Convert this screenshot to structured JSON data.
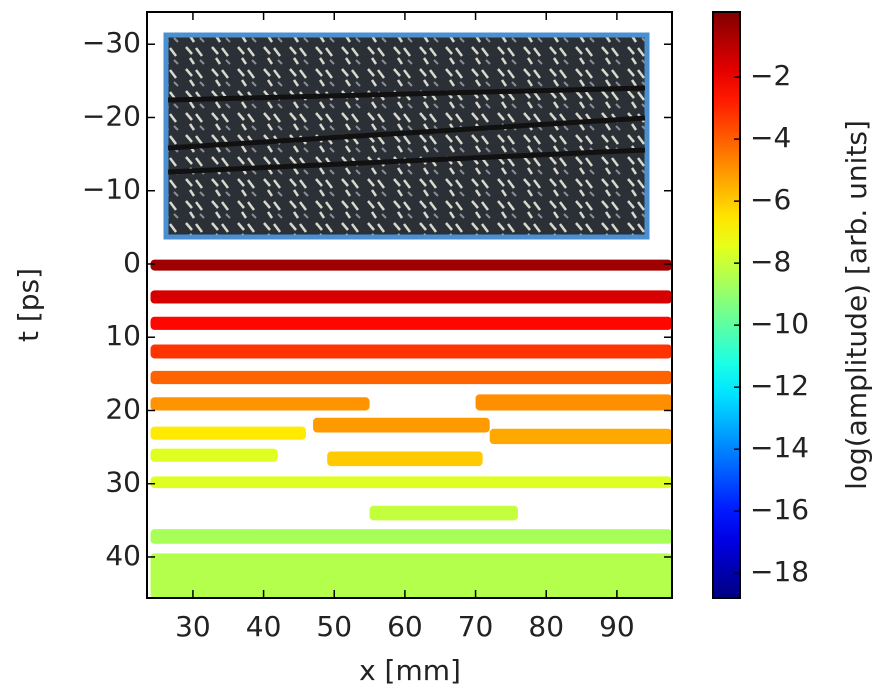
{
  "chart_data": {
    "type": "heatmap",
    "xlabel": "x [mm]",
    "ylabel": "t [ps]",
    "colorbar_label": "log(amplitude) [arb. units]",
    "xlim": [
      23.5,
      97.8
    ],
    "xticks": [
      30,
      40,
      50,
      60,
      70,
      80,
      90
    ],
    "ylim": [
      -34.4,
      45.6
    ],
    "yticks": [
      {
        "value": -30,
        "label": "−30"
      },
      {
        "value": -20,
        "label": "−20"
      },
      {
        "value": -10,
        "label": "−10"
      },
      0,
      10,
      20,
      30,
      40
    ],
    "clim": [
      -18.8,
      0.1
    ],
    "cticks": [
      {
        "value": -2,
        "label": "−2"
      },
      {
        "value": -4,
        "label": "−4"
      },
      {
        "value": -6,
        "label": "−6"
      },
      {
        "value": -8,
        "label": "−8"
      },
      {
        "value": -10,
        "label": "−10"
      },
      {
        "value": -12,
        "label": "−12"
      },
      {
        "value": -14,
        "label": "−14"
      },
      {
        "value": -16,
        "label": "−16"
      },
      {
        "value": -18,
        "label": "−18"
      }
    ],
    "colormap": "jet",
    "segments": [
      {
        "x": [
          24,
          97.8
        ],
        "t": [
          -0.6,
          0.9
        ],
        "value": -0.5
      },
      {
        "x": [
          24,
          97.8
        ],
        "t": [
          3.6,
          5.4
        ],
        "value": -1.5
      },
      {
        "x": [
          24,
          97.8
        ],
        "t": [
          7.2,
          9.0
        ],
        "value": -2.4
      },
      {
        "x": [
          24,
          97.8
        ],
        "t": [
          11.0,
          12.9
        ],
        "value": -3.2
      },
      {
        "x": [
          24,
          97.8
        ],
        "t": [
          14.6,
          16.4
        ],
        "value": -4.1
      },
      {
        "x": [
          24,
          55
        ],
        "t": [
          18.2,
          20.0
        ],
        "value": -5.0
      },
      {
        "x": [
          70,
          97.8
        ],
        "t": [
          17.8,
          20.0
        ],
        "value": -4.9
      },
      {
        "x": [
          47,
          72
        ],
        "t": [
          21.0,
          23.0
        ],
        "value": -5.1
      },
      {
        "x": [
          24,
          46
        ],
        "t": [
          22.2,
          24.0
        ],
        "value": -6.6
      },
      {
        "x": [
          72,
          97.8
        ],
        "t": [
          22.5,
          24.6
        ],
        "value": -5.4
      },
      {
        "x": [
          24,
          42
        ],
        "t": [
          25.2,
          27.0
        ],
        "value": -7.6
      },
      {
        "x": [
          49,
          71
        ],
        "t": [
          25.6,
          27.6
        ],
        "value": -6.0
      },
      {
        "x": [
          24,
          97.8
        ],
        "t": [
          29.0,
          30.6
        ],
        "value": -7.6
      },
      {
        "x": [
          55,
          76
        ],
        "t": [
          33.0,
          35.0
        ],
        "value": -8.1
      },
      {
        "x": [
          24,
          97.8
        ],
        "t": [
          36.2,
          38.2
        ],
        "value": -8.6
      },
      {
        "x": [
          24,
          97.8
        ],
        "t": [
          39.5,
          45.6
        ],
        "value": -8.4
      }
    ]
  }
}
